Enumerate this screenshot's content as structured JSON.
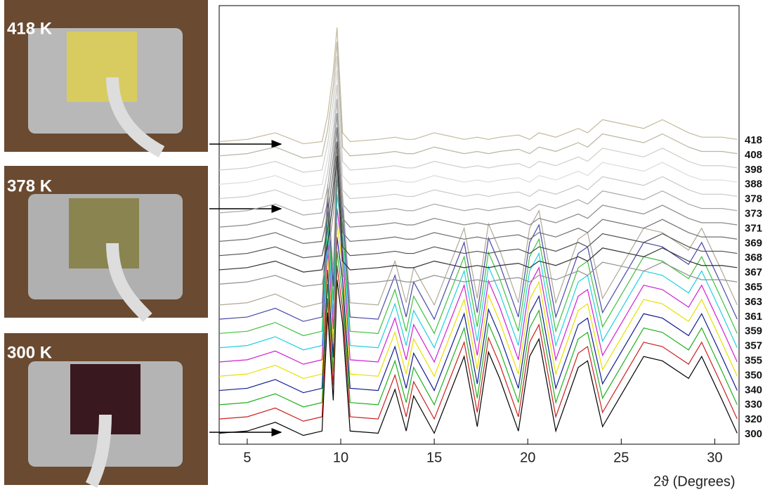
{
  "photos": [
    {
      "label": "418 K"
    },
    {
      "label": "378 K"
    },
    {
      "label": "300 K"
    }
  ],
  "chart_data": {
    "type": "line",
    "xlabel": "2ϑ (Degrees)",
    "xlim": [
      3.5,
      31.3
    ],
    "xticks": [
      5,
      10,
      15,
      20,
      25,
      30
    ],
    "ylim": [
      0,
      200
    ],
    "x": [
      3.5,
      5,
      6.5,
      8,
      9,
      9.3,
      9.6,
      9.8,
      10.1,
      10.5,
      12,
      12.9,
      13.5,
      13.9,
      15,
      16.6,
      17.3,
      17.9,
      18.5,
      19.5,
      20.1,
      20.6,
      21.5,
      22.7,
      23.2,
      24,
      26.2,
      27.2,
      28.6,
      29.3,
      30.4,
      31.2
    ],
    "offsets": [
      0,
      6.5,
      13,
      19.5,
      26,
      32.5,
      39,
      45.5,
      52,
      58.5,
      65,
      71.5,
      78,
      84.5,
      91,
      97.5,
      104,
      110.5,
      117,
      123.5,
      130
    ],
    "series": [
      {
        "name": "300",
        "color": "#000000",
        "values": [
          5,
          6,
          10,
          4,
          6,
          60,
          20,
          75,
          55,
          6,
          5,
          25,
          6,
          22,
          5,
          40,
          8,
          42,
          30,
          6,
          40,
          48,
          6,
          35,
          38,
          8,
          40,
          38,
          30,
          40,
          20,
          5
        ]
      },
      {
        "name": "320",
        "color": "#cc2020",
        "values": [
          5,
          6,
          10,
          4,
          6,
          60,
          20,
          75,
          55,
          6,
          5,
          25,
          6,
          22,
          5,
          40,
          8,
          42,
          30,
          6,
          40,
          48,
          6,
          35,
          38,
          8,
          40,
          38,
          30,
          40,
          20,
          5
        ]
      },
      {
        "name": "330",
        "color": "#20b020",
        "values": [
          5,
          6,
          10,
          4,
          6,
          60,
          20,
          75,
          55,
          6,
          5,
          25,
          6,
          22,
          5,
          40,
          8,
          42,
          30,
          6,
          40,
          48,
          6,
          35,
          38,
          8,
          40,
          38,
          30,
          40,
          20,
          5
        ]
      },
      {
        "name": "340",
        "color": "#101a90",
        "values": [
          5,
          6,
          10,
          4,
          6,
          60,
          20,
          75,
          55,
          6,
          5,
          25,
          6,
          22,
          5,
          40,
          8,
          42,
          30,
          6,
          40,
          48,
          6,
          35,
          38,
          8,
          40,
          38,
          30,
          40,
          20,
          5
        ]
      },
      {
        "name": "350",
        "color": "#e8e000",
        "values": [
          5,
          6,
          10,
          4,
          6,
          60,
          20,
          75,
          55,
          6,
          5,
          25,
          6,
          22,
          5,
          40,
          8,
          42,
          30,
          6,
          40,
          48,
          6,
          35,
          38,
          8,
          40,
          38,
          30,
          40,
          20,
          5
        ]
      },
      {
        "name": "355",
        "color": "#d020d0",
        "values": [
          5,
          6,
          10,
          4,
          6,
          60,
          20,
          75,
          55,
          6,
          5,
          25,
          6,
          22,
          5,
          40,
          8,
          42,
          30,
          6,
          40,
          48,
          6,
          35,
          38,
          8,
          40,
          38,
          30,
          40,
          20,
          5
        ]
      },
      {
        "name": "357",
        "color": "#20d0e0",
        "values": [
          5,
          6,
          10,
          4,
          6,
          60,
          20,
          75,
          55,
          6,
          5,
          25,
          6,
          22,
          5,
          40,
          8,
          42,
          30,
          6,
          40,
          48,
          6,
          35,
          38,
          8,
          40,
          38,
          30,
          40,
          20,
          5
        ]
      },
      {
        "name": "359",
        "color": "#40c040",
        "values": [
          5,
          6,
          10,
          4,
          6,
          60,
          20,
          75,
          55,
          6,
          5,
          25,
          6,
          22,
          5,
          40,
          8,
          42,
          30,
          6,
          40,
          48,
          6,
          35,
          38,
          8,
          40,
          38,
          30,
          40,
          20,
          5
        ]
      },
      {
        "name": "361",
        "color": "#4848a8",
        "values": [
          5,
          6,
          10,
          4,
          6,
          60,
          20,
          75,
          55,
          6,
          5,
          25,
          6,
          22,
          5,
          40,
          8,
          42,
          30,
          6,
          40,
          48,
          6,
          35,
          38,
          8,
          40,
          38,
          30,
          40,
          20,
          5
        ]
      },
      {
        "name": "363",
        "color": "#b0a898",
        "values": [
          5,
          6,
          10,
          4,
          6,
          60,
          20,
          75,
          55,
          6,
          5,
          25,
          6,
          22,
          5,
          40,
          8,
          42,
          30,
          6,
          40,
          48,
          6,
          35,
          38,
          8,
          40,
          38,
          30,
          40,
          20,
          5
        ]
      },
      {
        "name": "365",
        "color": "#909090",
        "values": [
          8,
          9,
          12,
          7,
          8,
          20,
          40,
          60,
          12,
          8,
          9,
          10,
          9,
          9,
          12,
          9,
          10,
          9,
          10,
          11,
          9,
          12,
          10,
          14,
          12,
          18,
          14,
          18,
          12,
          10,
          10,
          9
        ]
      },
      {
        "name": "367",
        "color": "#303030",
        "values": [
          8,
          9,
          12,
          7,
          8,
          20,
          40,
          60,
          12,
          8,
          9,
          10,
          9,
          9,
          12,
          9,
          10,
          9,
          10,
          11,
          9,
          12,
          10,
          14,
          12,
          18,
          14,
          18,
          12,
          10,
          10,
          9
        ]
      },
      {
        "name": "368",
        "color": "#505050",
        "values": [
          8,
          9,
          12,
          7,
          8,
          20,
          40,
          60,
          12,
          8,
          9,
          10,
          9,
          9,
          12,
          9,
          10,
          9,
          10,
          11,
          9,
          12,
          10,
          14,
          12,
          18,
          14,
          18,
          12,
          10,
          10,
          9
        ]
      },
      {
        "name": "369",
        "color": "#707070",
        "values": [
          8,
          9,
          12,
          7,
          8,
          20,
          40,
          60,
          12,
          8,
          9,
          10,
          9,
          9,
          12,
          9,
          10,
          9,
          10,
          11,
          9,
          12,
          10,
          14,
          12,
          18,
          14,
          18,
          12,
          10,
          10,
          9
        ]
      },
      {
        "name": "371",
        "color": "#888888",
        "values": [
          8,
          9,
          12,
          7,
          8,
          20,
          40,
          60,
          12,
          8,
          9,
          10,
          9,
          9,
          12,
          9,
          10,
          9,
          10,
          11,
          9,
          12,
          10,
          14,
          12,
          18,
          14,
          18,
          12,
          10,
          10,
          9
        ]
      },
      {
        "name": "373",
        "color": "#a8a8a8",
        "values": [
          8,
          9,
          12,
          7,
          8,
          20,
          40,
          60,
          12,
          8,
          9,
          10,
          9,
          9,
          12,
          9,
          10,
          9,
          10,
          11,
          9,
          12,
          10,
          14,
          12,
          18,
          14,
          18,
          12,
          10,
          10,
          9
        ]
      },
      {
        "name": "378",
        "color": "#c8c8c8",
        "values": [
          8,
          9,
          12,
          7,
          8,
          20,
          40,
          60,
          12,
          8,
          9,
          10,
          9,
          9,
          12,
          9,
          10,
          9,
          10,
          11,
          9,
          12,
          10,
          14,
          12,
          18,
          14,
          18,
          12,
          10,
          10,
          9
        ]
      },
      {
        "name": "388",
        "color": "#dcdcdc",
        "values": [
          8,
          9,
          12,
          7,
          8,
          20,
          40,
          60,
          12,
          8,
          9,
          10,
          9,
          9,
          12,
          9,
          10,
          9,
          10,
          11,
          9,
          12,
          10,
          14,
          12,
          18,
          14,
          18,
          12,
          10,
          10,
          9
        ]
      },
      {
        "name": "398",
        "color": "#cfcfc8",
        "values": [
          8,
          9,
          12,
          7,
          8,
          20,
          40,
          60,
          12,
          8,
          9,
          10,
          9,
          9,
          12,
          9,
          10,
          9,
          10,
          11,
          9,
          12,
          10,
          14,
          12,
          18,
          14,
          18,
          12,
          10,
          10,
          9
        ]
      },
      {
        "name": "408",
        "color": "#bab4a4",
        "values": [
          8,
          9,
          12,
          7,
          8,
          20,
          40,
          60,
          12,
          8,
          9,
          10,
          9,
          9,
          12,
          9,
          10,
          9,
          10,
          11,
          9,
          12,
          10,
          14,
          12,
          18,
          14,
          18,
          12,
          10,
          10,
          9
        ]
      },
      {
        "name": "418",
        "color": "#c2b99c",
        "values": [
          8,
          9,
          12,
          7,
          8,
          20,
          40,
          60,
          12,
          8,
          9,
          10,
          9,
          9,
          12,
          9,
          10,
          9,
          10,
          11,
          9,
          12,
          10,
          14,
          12,
          18,
          14,
          18,
          12,
          10,
          10,
          9
        ]
      }
    ]
  }
}
